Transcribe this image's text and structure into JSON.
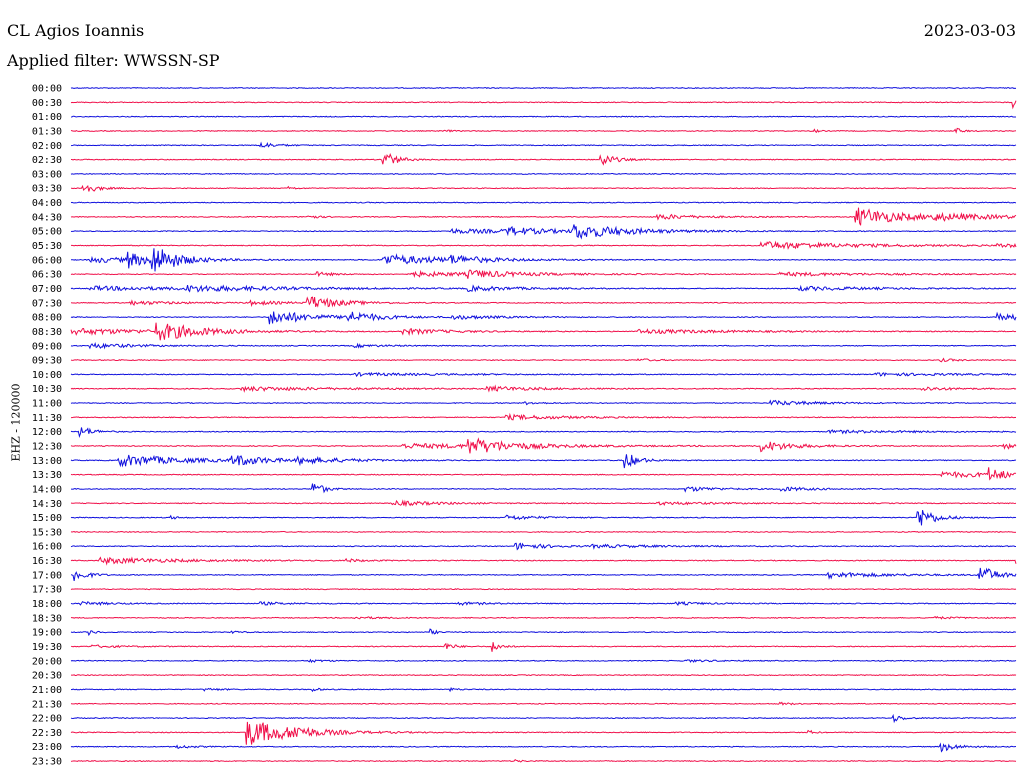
{
  "header": {
    "station": "CL Agios Ioannis",
    "date": "2023-03-03",
    "filter_text": "Applied filter: WWSSN-SP"
  },
  "colors": {
    "even_trace": "#1010dd",
    "odd_trace": "#f0104a",
    "background": "#ffffff"
  },
  "chart_data": {
    "type": "line",
    "title": "CL Agios Ioannis",
    "subtitle": "Applied filter: WWSSN-SP",
    "ylabel": "EHZ - 120000",
    "x_range_minutes": [
      0,
      30
    ],
    "rows": [
      {
        "time": "00:00",
        "color": "blue",
        "events": []
      },
      {
        "time": "00:30",
        "color": "red",
        "events": [
          {
            "t": 0.996,
            "amp": 0.8,
            "dur": 0.004
          }
        ]
      },
      {
        "time": "01:00",
        "color": "blue",
        "events": []
      },
      {
        "time": "01:30",
        "color": "red",
        "events": [
          {
            "t": 0.395,
            "amp": 0.25,
            "dur": 0.003
          },
          {
            "t": 0.785,
            "amp": 0.3,
            "dur": 0.003
          },
          {
            "t": 0.935,
            "amp": 0.55,
            "dur": 0.004
          }
        ]
      },
      {
        "time": "02:00",
        "color": "blue",
        "events": [
          {
            "t": 0.2,
            "amp": 0.45,
            "dur": 0.01
          }
        ]
      },
      {
        "time": "02:30",
        "color": "red",
        "events": [
          {
            "t": 0.328,
            "amp": 1.6,
            "dur": 0.008
          },
          {
            "t": 0.559,
            "amp": 1.2,
            "dur": 0.008
          }
        ]
      },
      {
        "time": "03:00",
        "color": "blue",
        "events": []
      },
      {
        "time": "03:30",
        "color": "red",
        "events": [
          {
            "t": 0.012,
            "amp": 0.9,
            "dur": 0.008
          },
          {
            "t": 0.229,
            "amp": 0.3,
            "dur": 0.004
          }
        ]
      },
      {
        "time": "04:00",
        "color": "blue",
        "events": []
      },
      {
        "time": "04:30",
        "color": "red",
        "events": [
          {
            "t": 0.25,
            "amp": 0.35,
            "dur": 0.006
          },
          {
            "t": 0.62,
            "amp": 0.4,
            "dur": 0.025
          },
          {
            "t": 0.83,
            "amp": 1.4,
            "dur": 0.03
          },
          {
            "t": 0.91,
            "amp": 0.35,
            "dur": 0.06
          }
        ]
      },
      {
        "time": "05:00",
        "color": "blue",
        "events": [
          {
            "t": 0.4,
            "amp": 0.3,
            "dur": 0.08
          },
          {
            "t": 0.46,
            "amp": 0.5,
            "dur": 0.02
          },
          {
            "t": 0.53,
            "amp": 1.1,
            "dur": 0.03
          }
        ]
      },
      {
        "time": "05:30",
        "color": "red",
        "events": [
          {
            "t": 0.73,
            "amp": 0.55,
            "dur": 0.06
          },
          {
            "t": 0.98,
            "amp": 0.25,
            "dur": 0.02
          }
        ]
      },
      {
        "time": "06:00",
        "color": "blue",
        "events": [
          {
            "t": 0.02,
            "amp": 0.4,
            "dur": 0.04
          },
          {
            "t": 0.06,
            "amp": 1.1,
            "dur": 0.01
          },
          {
            "t": 0.085,
            "amp": 2.2,
            "dur": 0.015
          },
          {
            "t": 0.33,
            "amp": 0.8,
            "dur": 0.04
          },
          {
            "t": 0.4,
            "amp": 0.5,
            "dur": 0.02
          }
        ]
      },
      {
        "time": "06:30",
        "color": "red",
        "events": [
          {
            "t": 0.26,
            "amp": 0.3,
            "dur": 0.01
          },
          {
            "t": 0.36,
            "amp": 0.35,
            "dur": 0.05
          },
          {
            "t": 0.42,
            "amp": 0.45,
            "dur": 0.03
          },
          {
            "t": 0.75,
            "amp": 0.25,
            "dur": 0.06
          }
        ]
      },
      {
        "time": "07:00",
        "color": "blue",
        "events": [
          {
            "t": 0.02,
            "amp": 0.3,
            "dur": 0.08
          },
          {
            "t": 0.12,
            "amp": 0.35,
            "dur": 0.06
          },
          {
            "t": 0.42,
            "amp": 0.35,
            "dur": 0.03
          },
          {
            "t": 0.77,
            "amp": 0.3,
            "dur": 0.05
          }
        ]
      },
      {
        "time": "07:30",
        "color": "red",
        "events": [
          {
            "t": 0.06,
            "amp": 0.3,
            "dur": 0.03
          },
          {
            "t": 0.19,
            "amp": 0.3,
            "dur": 0.02
          },
          {
            "t": 0.25,
            "amp": 1.0,
            "dur": 0.02
          }
        ]
      },
      {
        "time": "08:00",
        "color": "blue",
        "events": [
          {
            "t": 0.21,
            "amp": 1.1,
            "dur": 0.025
          },
          {
            "t": 0.29,
            "amp": 0.8,
            "dur": 0.02
          },
          {
            "t": 0.4,
            "amp": 0.3,
            "dur": 0.03
          },
          {
            "t": 0.98,
            "amp": 0.7,
            "dur": 0.015
          }
        ]
      },
      {
        "time": "08:30",
        "color": "red",
        "events": [
          {
            "t": 0.0,
            "amp": 0.45,
            "dur": 0.06
          },
          {
            "t": 0.09,
            "amp": 1.3,
            "dur": 0.025
          },
          {
            "t": 0.35,
            "amp": 0.4,
            "dur": 0.03
          },
          {
            "t": 0.6,
            "amp": 0.3,
            "dur": 0.06
          }
        ]
      },
      {
        "time": "09:00",
        "color": "blue",
        "events": [
          {
            "t": 0.02,
            "amp": 0.35,
            "dur": 0.03
          },
          {
            "t": 0.3,
            "amp": 0.2,
            "dur": 0.02
          }
        ]
      },
      {
        "time": "09:30",
        "color": "red",
        "events": [
          {
            "t": 0.6,
            "amp": 0.2,
            "dur": 0.01
          },
          {
            "t": 0.92,
            "amp": 0.2,
            "dur": 0.01
          }
        ]
      },
      {
        "time": "10:00",
        "color": "blue",
        "events": [
          {
            "t": 0.3,
            "amp": 0.2,
            "dur": 0.06
          },
          {
            "t": 0.85,
            "amp": 0.2,
            "dur": 0.06
          }
        ]
      },
      {
        "time": "10:30",
        "color": "red",
        "events": [
          {
            "t": 0.18,
            "amp": 0.3,
            "dur": 0.06
          },
          {
            "t": 0.44,
            "amp": 0.35,
            "dur": 0.03
          },
          {
            "t": 0.9,
            "amp": 0.3,
            "dur": 0.02
          }
        ]
      },
      {
        "time": "11:00",
        "color": "blue",
        "events": [
          {
            "t": 0.48,
            "amp": 0.2,
            "dur": 0.01
          },
          {
            "t": 0.74,
            "amp": 0.35,
            "dur": 0.03
          }
        ]
      },
      {
        "time": "11:30",
        "color": "red",
        "events": [
          {
            "t": 0.46,
            "amp": 0.35,
            "dur": 0.04
          }
        ]
      },
      {
        "time": "12:00",
        "color": "blue",
        "events": [
          {
            "t": 0.008,
            "amp": 0.9,
            "dur": 0.008
          },
          {
            "t": 0.8,
            "amp": 0.2,
            "dur": 0.06
          }
        ]
      },
      {
        "time": "12:30",
        "color": "red",
        "events": [
          {
            "t": 0.35,
            "amp": 0.35,
            "dur": 0.08
          },
          {
            "t": 0.42,
            "amp": 1.1,
            "dur": 0.025
          },
          {
            "t": 0.73,
            "amp": 0.8,
            "dur": 0.02
          },
          {
            "t": 0.985,
            "amp": 0.5,
            "dur": 0.01
          }
        ]
      },
      {
        "time": "13:00",
        "color": "blue",
        "events": [
          {
            "t": 0.05,
            "amp": 0.9,
            "dur": 0.04
          },
          {
            "t": 0.17,
            "amp": 0.8,
            "dur": 0.02
          },
          {
            "t": 0.24,
            "amp": 0.45,
            "dur": 0.03
          },
          {
            "t": 0.585,
            "amp": 1.4,
            "dur": 0.008
          }
        ]
      },
      {
        "time": "13:30",
        "color": "red",
        "events": [
          {
            "t": 0.92,
            "amp": 0.4,
            "dur": 0.05
          },
          {
            "t": 0.97,
            "amp": 0.9,
            "dur": 0.01
          }
        ]
      },
      {
        "time": "14:00",
        "color": "blue",
        "events": [
          {
            "t": 0.255,
            "amp": 1.4,
            "dur": 0.006
          },
          {
            "t": 0.65,
            "amp": 0.35,
            "dur": 0.02
          },
          {
            "t": 0.75,
            "amp": 0.3,
            "dur": 0.02
          }
        ]
      },
      {
        "time": "14:30",
        "color": "red",
        "events": [
          {
            "t": 0.34,
            "amp": 0.35,
            "dur": 0.03
          },
          {
            "t": 0.62,
            "amp": 0.2,
            "dur": 0.04
          }
        ]
      },
      {
        "time": "15:00",
        "color": "blue",
        "events": [
          {
            "t": 0.105,
            "amp": 0.3,
            "dur": 0.004
          },
          {
            "t": 0.46,
            "amp": 0.35,
            "dur": 0.02
          },
          {
            "t": 0.895,
            "amp": 1.8,
            "dur": 0.01
          }
        ]
      },
      {
        "time": "15:30",
        "color": "red",
        "events": []
      },
      {
        "time": "16:00",
        "color": "blue",
        "events": [
          {
            "t": 0.47,
            "amp": 0.5,
            "dur": 0.02
          },
          {
            "t": 0.55,
            "amp": 0.2,
            "dur": 0.05
          }
        ]
      },
      {
        "time": "16:30",
        "color": "red",
        "events": [
          {
            "t": 0.03,
            "amp": 0.45,
            "dur": 0.05
          },
          {
            "t": 0.29,
            "amp": 0.25,
            "dur": 0.01
          },
          {
            "t": 0.998,
            "amp": 1.0,
            "dur": 0.004
          }
        ]
      },
      {
        "time": "17:00",
        "color": "blue",
        "events": [
          {
            "t": 0.002,
            "amp": 1.1,
            "dur": 0.008
          },
          {
            "t": 0.8,
            "amp": 0.4,
            "dur": 0.04
          },
          {
            "t": 0.96,
            "amp": 1.6,
            "dur": 0.01
          }
        ]
      },
      {
        "time": "17:30",
        "color": "red",
        "events": []
      },
      {
        "time": "18:00",
        "color": "blue",
        "events": [
          {
            "t": 0.01,
            "amp": 0.25,
            "dur": 0.02
          },
          {
            "t": 0.2,
            "amp": 0.2,
            "dur": 0.02
          },
          {
            "t": 0.41,
            "amp": 0.2,
            "dur": 0.02
          },
          {
            "t": 0.64,
            "amp": 0.2,
            "dur": 0.02
          }
        ]
      },
      {
        "time": "18:30",
        "color": "red",
        "events": [
          {
            "t": 0.3,
            "amp": 0.15,
            "dur": 0.02
          },
          {
            "t": 0.91,
            "amp": 0.15,
            "dur": 0.02
          }
        ]
      },
      {
        "time": "19:00",
        "color": "blue",
        "events": [
          {
            "t": 0.018,
            "amp": 0.4,
            "dur": 0.004
          },
          {
            "t": 0.17,
            "amp": 0.25,
            "dur": 0.004
          },
          {
            "t": 0.38,
            "amp": 0.4,
            "dur": 0.004
          }
        ]
      },
      {
        "time": "19:30",
        "color": "red",
        "events": [
          {
            "t": 0.02,
            "amp": 0.2,
            "dur": 0.02
          },
          {
            "t": 0.395,
            "amp": 0.6,
            "dur": 0.006
          },
          {
            "t": 0.445,
            "amp": 0.9,
            "dur": 0.005
          }
        ]
      },
      {
        "time": "20:00",
        "color": "blue",
        "events": [
          {
            "t": 0.25,
            "amp": 0.2,
            "dur": 0.01
          },
          {
            "t": 0.65,
            "amp": 0.15,
            "dur": 0.02
          }
        ]
      },
      {
        "time": "20:30",
        "color": "red",
        "events": []
      },
      {
        "time": "21:00",
        "color": "blue",
        "events": [
          {
            "t": 0.14,
            "amp": 0.2,
            "dur": 0.01
          },
          {
            "t": 0.255,
            "amp": 0.35,
            "dur": 0.004
          },
          {
            "t": 0.4,
            "amp": 0.2,
            "dur": 0.006
          }
        ]
      },
      {
        "time": "21:30",
        "color": "red",
        "events": [
          {
            "t": 0.75,
            "amp": 0.2,
            "dur": 0.008
          }
        ]
      },
      {
        "time": "22:00",
        "color": "blue",
        "events": [
          {
            "t": 0.87,
            "amp": 0.55,
            "dur": 0.006
          }
        ]
      },
      {
        "time": "22:30",
        "color": "red",
        "events": [
          {
            "t": 0.185,
            "amp": 2.0,
            "dur": 0.03
          },
          {
            "t": 0.235,
            "amp": 0.6,
            "dur": 0.006
          },
          {
            "t": 0.78,
            "amp": 0.3,
            "dur": 0.004
          }
        ]
      },
      {
        "time": "23:00",
        "color": "blue",
        "events": [
          {
            "t": 0.11,
            "amp": 0.3,
            "dur": 0.01
          },
          {
            "t": 0.92,
            "amp": 0.7,
            "dur": 0.01
          }
        ]
      },
      {
        "time": "23:30",
        "color": "red",
        "events": [
          {
            "t": 0.47,
            "amp": 0.2,
            "dur": 0.004
          }
        ]
      }
    ]
  }
}
